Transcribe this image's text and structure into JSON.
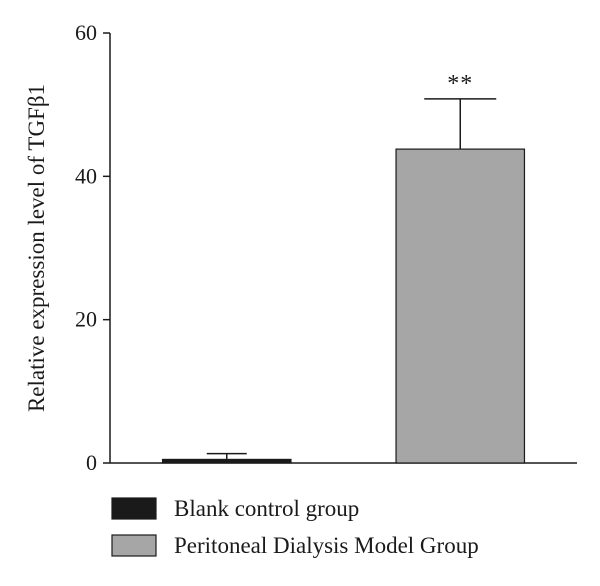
{
  "chart_data": {
    "type": "bar",
    "title": "",
    "xlabel": "",
    "ylabel": "Relative expression level of TGFβ1",
    "ylim": [
      0,
      60
    ],
    "yticks": [
      0,
      20,
      40,
      60
    ],
    "grid": false,
    "legend_placement": "bottom",
    "categories": [
      "Blank control group",
      "Peritoneal Dialysis Model Group"
    ],
    "values": [
      0.5,
      43.8
    ],
    "errors": [
      0.8,
      7.0
    ],
    "significance": [
      "",
      "**"
    ],
    "colors": [
      "#1a1a1a",
      "#a6a6a6"
    ]
  }
}
